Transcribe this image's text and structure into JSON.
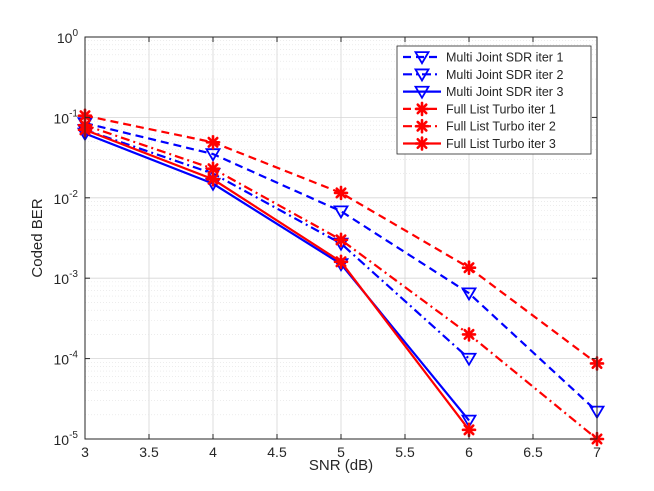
{
  "chart_data": {
    "type": "line",
    "title": "",
    "xlabel": "SNR (dB)",
    "ylabel": "Coded BER",
    "xlim": [
      3,
      7
    ],
    "ylim_log10": [
      -5,
      0
    ],
    "yscale": "log",
    "grid": true,
    "legend_position": "top-right",
    "x_ticks": [
      3,
      3.5,
      4,
      4.5,
      5,
      5.5,
      6,
      6.5,
      7
    ],
    "x_tick_labels": [
      "3",
      "3.5",
      "4",
      "4.5",
      "5",
      "5.5",
      "6",
      "6.5",
      "7"
    ],
    "y_ticks": [
      {
        "value": 1,
        "base": "10",
        "exp": "0"
      },
      {
        "value": 0.1,
        "base": "10",
        "exp": "-1"
      },
      {
        "value": 0.01,
        "base": "10",
        "exp": "-2"
      },
      {
        "value": 0.001,
        "base": "10",
        "exp": "-3"
      },
      {
        "value": 0.0001,
        "base": "10",
        "exp": "-4"
      },
      {
        "value": 1e-05,
        "base": "10",
        "exp": "-5"
      }
    ],
    "series": [
      {
        "name": "Multi Joint SDR iter 1",
        "color": "#0000ff",
        "dash": "dashed",
        "marker": "triangle-down",
        "x": [
          3,
          4,
          5,
          6,
          7
        ],
        "y": [
          0.085,
          0.035,
          0.0068,
          0.00065,
          2.2e-05
        ]
      },
      {
        "name": "Multi Joint SDR iter 2",
        "color": "#0000ff",
        "dash": "dashdot",
        "marker": "triangle-down",
        "x": [
          3,
          4,
          5,
          6
        ],
        "y": [
          0.07,
          0.02,
          0.0027,
          0.0001
        ]
      },
      {
        "name": "Multi Joint SDR iter 3",
        "color": "#0000ff",
        "dash": "solid",
        "marker": "triangle-down",
        "x": [
          3,
          4,
          5,
          6
        ],
        "y": [
          0.063,
          0.015,
          0.0015,
          1.7e-05
        ]
      },
      {
        "name": "Full List Turbo iter 1",
        "color": "#ff0000",
        "dash": "dashed",
        "marker": "asterisk",
        "x": [
          3,
          4,
          5,
          6,
          7
        ],
        "y": [
          0.105,
          0.049,
          0.0115,
          0.00135,
          8.7e-05
        ]
      },
      {
        "name": "Full List Turbo iter 2",
        "color": "#ff0000",
        "dash": "dashdot",
        "marker": "asterisk",
        "x": [
          3,
          4,
          5,
          6,
          7
        ],
        "y": [
          0.08,
          0.023,
          0.003,
          0.0002,
          1e-05
        ]
      },
      {
        "name": "Full List Turbo iter 3",
        "color": "#ff0000",
        "dash": "solid",
        "marker": "asterisk",
        "x": [
          3,
          4,
          5,
          6
        ],
        "y": [
          0.07,
          0.017,
          0.0016,
          1.3e-05
        ]
      }
    ]
  }
}
